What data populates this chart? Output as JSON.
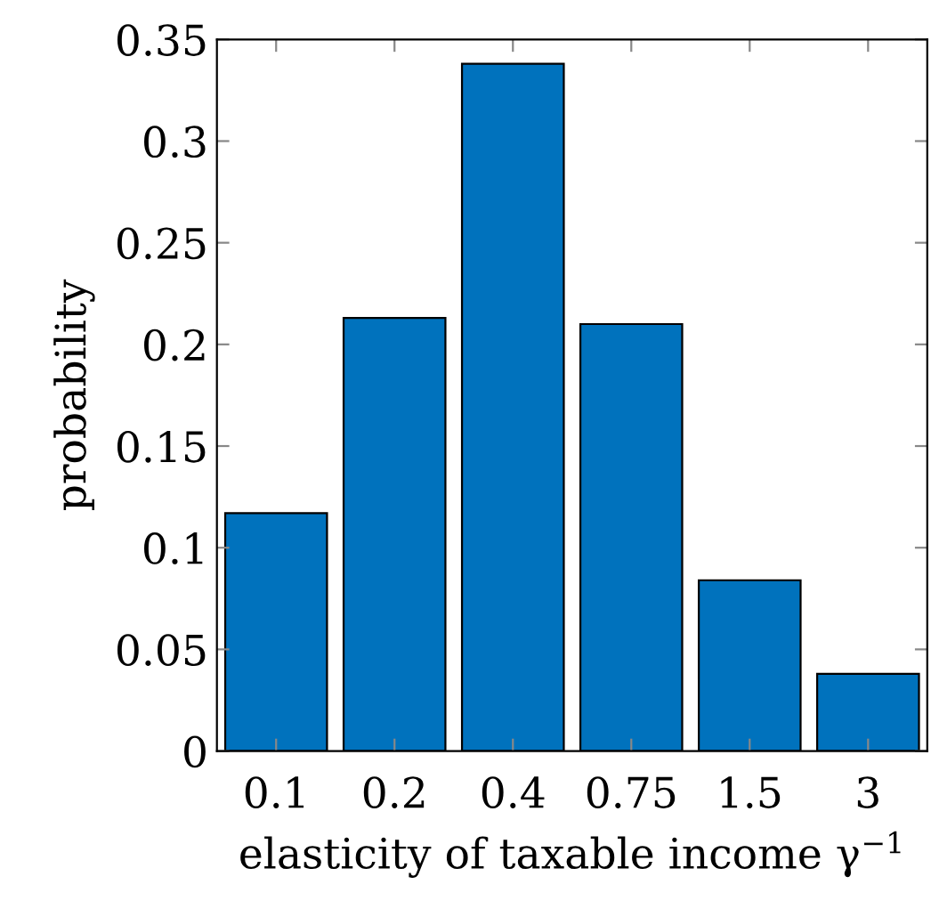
{
  "chart_data": {
    "type": "bar",
    "xlabel": "elasticity of taxable income γ$^{−1}$",
    "ylabel": "probability",
    "categories": [
      "0.1",
      "0.2",
      "0.4",
      "0.75",
      "1.5",
      "3"
    ],
    "values": [
      0.117,
      0.213,
      0.338,
      0.21,
      0.084,
      0.038
    ],
    "color": "#0072bd",
    "ylim": [
      0,
      0.35
    ],
    "yticks": [
      0,
      0.05,
      0.1,
      0.15,
      0.2,
      0.25,
      0.3,
      0.35
    ],
    "grid": false,
    "legend": false
  }
}
